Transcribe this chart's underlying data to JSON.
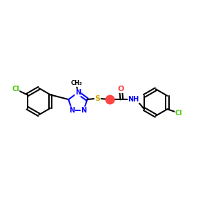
{
  "bg_color": "#ffffff",
  "atom_color_C": "#000000",
  "atom_color_N": "#0000ff",
  "atom_color_S": "#ccaa00",
  "atom_color_O": "#ff4444",
  "atom_color_Cl": "#44cc00",
  "bond_color": "#000000",
  "figsize": [
    3.0,
    3.0
  ],
  "dpi": 100,
  "xlim": [
    0,
    10
  ],
  "ylim": [
    2,
    8
  ]
}
